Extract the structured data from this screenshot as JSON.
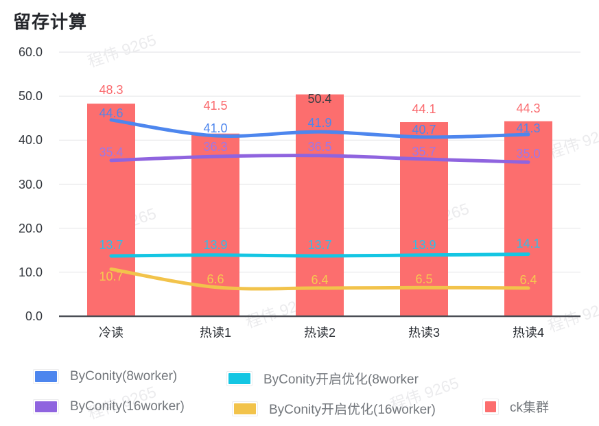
{
  "title": "留存计算",
  "watermark": "程伟 9265",
  "chart_data": {
    "type": "bar+line combo",
    "title": "留存计算",
    "categories": [
      "冷读",
      "热读1",
      "热读2",
      "热读3",
      "热读4"
    ],
    "bar_series": {
      "name": "ck集群",
      "color": "#FC6E6E",
      "label_color": "#FA6A6E",
      "values": [
        48.3,
        41.5,
        50.4,
        44.1,
        44.3
      ]
    },
    "series": [
      {
        "name": "ByConity(8worker)",
        "id": "byconity-8worker",
        "color": "#4D86EE",
        "label_color": "#4D86EE",
        "values": [
          44.6,
          41.0,
          41.9,
          40.7,
          41.3
        ]
      },
      {
        "name": "ByConity(16worker)",
        "id": "byconity-16worker",
        "color": "#8F64DF",
        "label_color": "#9C77E9",
        "values": [
          35.4,
          36.3,
          36.5,
          35.7,
          35.0
        ]
      },
      {
        "name": "ByConity开启优化(8worker",
        "id": "byconity-opt-8worker",
        "color": "#14C6E3",
        "label_color": "#33BCE6",
        "values": [
          13.7,
          13.9,
          13.7,
          13.9,
          14.1
        ]
      },
      {
        "name": "ByConity开启优化(16worker)",
        "id": "byconity-opt-16worker",
        "color": "#F2C34B",
        "label_color": "#F6C94F",
        "values": [
          10.7,
          6.6,
          6.4,
          6.5,
          6.4
        ]
      }
    ],
    "y_axis": {
      "min": 0,
      "max": 60,
      "tick_values": [
        60,
        50,
        40,
        30,
        20,
        10,
        0
      ],
      "tick_labels": [
        "60.0",
        "50.0",
        "40.0",
        "30.0",
        "20.0",
        "10.0",
        "0.0"
      ]
    },
    "grid": true,
    "special_label_color_dark": "#3A3E44",
    "legend": {
      "position": "bottom",
      "items": [
        {
          "label": "ByConity(8worker)",
          "series": 0,
          "type": "line"
        },
        {
          "label": "ByConity开启优化(8worker",
          "series": 2,
          "type": "line"
        },
        {
          "label": "ByConity(16worker)",
          "series": 1,
          "type": "line"
        },
        {
          "label": "ByConity开启优化(16worker)",
          "series": 3,
          "type": "line"
        },
        {
          "label": "ck集群",
          "series": "bar",
          "type": "bar"
        }
      ]
    }
  }
}
